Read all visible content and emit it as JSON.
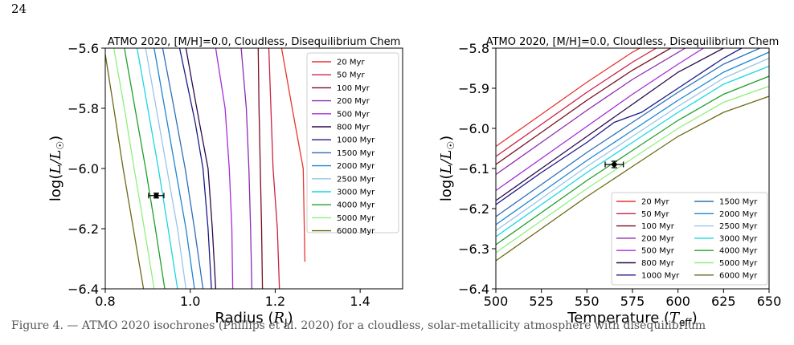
{
  "page": {
    "number": "24",
    "caption": "Figure 4. — ATMO 2020 isochrones (Phillips et al. 2020) for a cloudless, solar-metallicity atmosphere with disequilibrium"
  },
  "chart_data": [
    {
      "type": "line",
      "title": "ATMO 2020, [M/H]=0.0, Cloudless, Disequilibrium Chem",
      "xlabel": "Radius (R_J)",
      "ylabel": "log(L/L_☉)",
      "xlim": [
        0.8,
        1.5
      ],
      "ylim": [
        -6.4,
        -5.6
      ],
      "xticks": [
        "0.8",
        "1.0",
        "1.2",
        "1.4"
      ],
      "yticks": [
        "−6.4",
        "−6.2",
        "−6.0",
        "−5.8",
        "−5.6"
      ],
      "grid": false,
      "legend": "top-right",
      "series": [
        {
          "name": "20 Myr",
          "color": "#e8352f",
          "points": [
            [
              1.27,
              -6.31
            ],
            [
              1.266,
              -6.0
            ],
            [
              1.24,
              -5.8
            ],
            [
              1.215,
              -5.6
            ]
          ]
        },
        {
          "name": "50 Myr",
          "color": "#cc2244",
          "points": [
            [
              1.21,
              -6.4
            ],
            [
              1.205,
              -6.2
            ],
            [
              1.195,
              -6.0
            ],
            [
              1.19,
              -5.8
            ],
            [
              1.185,
              -5.6
            ]
          ]
        },
        {
          "name": "100 Myr",
          "color": "#7a0e22",
          "points": [
            [
              1.17,
              -6.4
            ],
            [
              1.168,
              -6.2
            ],
            [
              1.165,
              -6.0
            ],
            [
              1.162,
              -5.8
            ],
            [
              1.16,
              -5.6
            ]
          ]
        },
        {
          "name": "200 Myr",
          "color": "#8e2bb0",
          "points": [
            [
              1.145,
              -6.4
            ],
            [
              1.142,
              -6.2
            ],
            [
              1.138,
              -6.0
            ],
            [
              1.132,
              -5.8
            ],
            [
              1.12,
              -5.6
            ]
          ]
        },
        {
          "name": "500 Myr",
          "color": "#a52dd8",
          "points": [
            [
              1.1,
              -6.4
            ],
            [
              1.098,
              -6.2
            ],
            [
              1.092,
              -6.0
            ],
            [
              1.082,
              -5.8
            ],
            [
              1.06,
              -5.6
            ]
          ]
        },
        {
          "name": "800 Myr",
          "color": "#2a0a4a",
          "points": [
            [
              1.06,
              -6.4
            ],
            [
              1.052,
              -6.2
            ],
            [
              1.042,
              -6.0
            ],
            [
              1.022,
              -5.85
            ],
            [
              1.005,
              -5.72
            ],
            [
              0.99,
              -5.6
            ]
          ]
        },
        {
          "name": "1000 Myr",
          "color": "#1c1a8a",
          "points": [
            [
              1.05,
              -6.4
            ],
            [
              1.042,
              -6.2
            ],
            [
              1.03,
              -6.0
            ],
            [
              1.012,
              -5.85
            ],
            [
              0.99,
              -5.7
            ],
            [
              0.975,
              -5.6
            ]
          ]
        },
        {
          "name": "1500 Myr",
          "color": "#2d6fb8",
          "points": [
            [
              1.03,
              -6.4
            ],
            [
              1.01,
              -6.2
            ],
            [
              0.988,
              -6.0
            ],
            [
              0.962,
              -5.8
            ],
            [
              0.935,
              -5.6
            ]
          ]
        },
        {
          "name": "2000 Myr",
          "color": "#1f86d2",
          "points": [
            [
              1.01,
              -6.4
            ],
            [
              0.99,
              -6.2
            ],
            [
              0.965,
              -6.0
            ],
            [
              0.94,
              -5.8
            ],
            [
              0.915,
              -5.6
            ]
          ]
        },
        {
          "name": "2500 Myr",
          "color": "#9ac5e8",
          "points": [
            [
              0.99,
              -6.4
            ],
            [
              0.97,
              -6.2
            ],
            [
              0.945,
              -6.0
            ],
            [
              0.92,
              -5.8
            ],
            [
              0.895,
              -5.6
            ]
          ]
        },
        {
          "name": "3000 Myr",
          "color": "#1ad7e0",
          "points": [
            [
              0.97,
              -6.4
            ],
            [
              0.948,
              -6.2
            ],
            [
              0.925,
              -6.0
            ],
            [
              0.9,
              -5.8
            ],
            [
              0.875,
              -5.6
            ]
          ]
        },
        {
          "name": "4000 Myr",
          "color": "#1fa02c",
          "points": [
            [
              0.94,
              -6.4
            ],
            [
              0.918,
              -6.2
            ],
            [
              0.895,
              -6.0
            ],
            [
              0.87,
              -5.8
            ],
            [
              0.845,
              -5.6
            ]
          ]
        },
        {
          "name": "5000 Myr",
          "color": "#8ef07a",
          "points": [
            [
              0.915,
              -6.4
            ],
            [
              0.892,
              -6.2
            ],
            [
              0.868,
              -6.0
            ],
            [
              0.845,
              -5.8
            ],
            [
              0.82,
              -5.6
            ]
          ]
        },
        {
          "name": "6000 Myr",
          "color": "#6b6a14",
          "points": [
            [
              0.89,
              -6.4
            ],
            [
              0.866,
              -6.2
            ],
            [
              0.842,
              -6.0
            ],
            [
              0.82,
              -5.8
            ],
            [
              0.8,
              -5.62
            ]
          ]
        }
      ],
      "datapoint": {
        "x": 0.92,
        "y": -6.09,
        "xerr": 0.018,
        "yerr": 0.008
      }
    },
    {
      "type": "line",
      "title": "ATMO 2020, [M/H]=0.0, Cloudless, Disequilibrium Chem",
      "xlabel": "Temperature (T_eff)",
      "ylabel": "log(L/L_☉)",
      "xlim": [
        500,
        650
      ],
      "ylim": [
        -6.4,
        -5.8
      ],
      "xticks": [
        "500",
        "525",
        "550",
        "575",
        "600",
        "625",
        "650"
      ],
      "yticks": [
        "−6.4",
        "−6.3",
        "−6.2",
        "−6.1",
        "−6.0",
        "−5.9",
        "−5.8"
      ],
      "grid": false,
      "legend": "lower-right",
      "series": [
        {
          "name": "20 Myr",
          "color": "#e8352f",
          "points": [
            [
              500,
              -6.045
            ],
            [
              525,
              -5.965
            ],
            [
              550,
              -5.885
            ],
            [
              575,
              -5.81
            ],
            [
              579,
              -5.8
            ]
          ]
        },
        {
          "name": "50 Myr",
          "color": "#cc2244",
          "points": [
            [
              500,
              -6.07
            ],
            [
              525,
              -5.99
            ],
            [
              550,
              -5.91
            ],
            [
              575,
              -5.835
            ],
            [
              588,
              -5.8
            ]
          ]
        },
        {
          "name": "100 Myr",
          "color": "#7a0e22",
          "points": [
            [
              500,
              -6.09
            ],
            [
              525,
              -6.01
            ],
            [
              550,
              -5.93
            ],
            [
              575,
              -5.855
            ],
            [
              596,
              -5.8
            ]
          ]
        },
        {
          "name": "200 Myr",
          "color": "#8e2bb0",
          "points": [
            [
              500,
              -6.115
            ],
            [
              525,
              -6.035
            ],
            [
              550,
              -5.955
            ],
            [
              575,
              -5.878
            ],
            [
              604,
              -5.8
            ]
          ]
        },
        {
          "name": "500 Myr",
          "color": "#a52dd8",
          "points": [
            [
              500,
              -6.155
            ],
            [
              525,
              -6.075
            ],
            [
              550,
              -5.995
            ],
            [
              575,
              -5.915
            ],
            [
              600,
              -5.84
            ],
            [
              614,
              -5.8
            ]
          ]
        },
        {
          "name": "800 Myr",
          "color": "#2a0a4a",
          "points": [
            [
              500,
              -6.18
            ],
            [
              525,
              -6.1
            ],
            [
              550,
              -6.02
            ],
            [
              575,
              -5.94
            ],
            [
              600,
              -5.86
            ],
            [
              625,
              -5.8
            ]
          ]
        },
        {
          "name": "1000 Myr",
          "color": "#1c1a8a",
          "points": [
            [
              500,
              -6.19
            ],
            [
              525,
              -6.11
            ],
            [
              550,
              -6.035
            ],
            [
              565,
              -5.985
            ],
            [
              580,
              -5.96
            ],
            [
              600,
              -5.9
            ],
            [
              625,
              -5.825
            ],
            [
              635,
              -5.8
            ]
          ]
        },
        {
          "name": "1500 Myr",
          "color": "#2d6fb8",
          "points": [
            [
              500,
              -6.22
            ],
            [
              525,
              -6.14
            ],
            [
              550,
              -6.06
            ],
            [
              575,
              -5.985
            ],
            [
              600,
              -5.91
            ],
            [
              625,
              -5.84
            ],
            [
              645,
              -5.8
            ]
          ]
        },
        {
          "name": "2000 Myr",
          "color": "#1f86d2",
          "points": [
            [
              500,
              -6.24
            ],
            [
              525,
              -6.16
            ],
            [
              550,
              -6.08
            ],
            [
              575,
              -6.005
            ],
            [
              600,
              -5.93
            ],
            [
              625,
              -5.86
            ],
            [
              650,
              -5.81
            ]
          ]
        },
        {
          "name": "2500 Myr",
          "color": "#9ac5e8",
          "points": [
            [
              500,
              -6.255
            ],
            [
              525,
              -6.175
            ],
            [
              550,
              -6.095
            ],
            [
              575,
              -6.02
            ],
            [
              600,
              -5.945
            ],
            [
              625,
              -5.875
            ],
            [
              650,
              -5.825
            ]
          ]
        },
        {
          "name": "3000 Myr",
          "color": "#1ad7e0",
          "points": [
            [
              500,
              -6.27
            ],
            [
              525,
              -6.19
            ],
            [
              550,
              -6.11
            ],
            [
              575,
              -6.035
            ],
            [
              600,
              -5.96
            ],
            [
              625,
              -5.89
            ],
            [
              650,
              -5.845
            ]
          ]
        },
        {
          "name": "4000 Myr",
          "color": "#1fa02c",
          "points": [
            [
              500,
              -6.29
            ],
            [
              525,
              -6.21
            ],
            [
              550,
              -6.13
            ],
            [
              575,
              -6.055
            ],
            [
              600,
              -5.98
            ],
            [
              625,
              -5.915
            ],
            [
              650,
              -5.87
            ]
          ]
        },
        {
          "name": "5000 Myr",
          "color": "#8ef07a",
          "points": [
            [
              500,
              -6.31
            ],
            [
              525,
              -6.23
            ],
            [
              550,
              -6.15
            ],
            [
              575,
              -6.075
            ],
            [
              600,
              -6.0
            ],
            [
              625,
              -5.935
            ],
            [
              650,
              -5.895
            ]
          ]
        },
        {
          "name": "6000 Myr",
          "color": "#6b6a14",
          "points": [
            [
              500,
              -6.33
            ],
            [
              525,
              -6.25
            ],
            [
              550,
              -6.17
            ],
            [
              575,
              -6.095
            ],
            [
              600,
              -6.02
            ],
            [
              625,
              -5.96
            ],
            [
              650,
              -5.92
            ]
          ]
        }
      ],
      "datapoint": {
        "x": 565,
        "y": -6.09,
        "xerr": 5,
        "yerr": 0.008
      }
    }
  ]
}
